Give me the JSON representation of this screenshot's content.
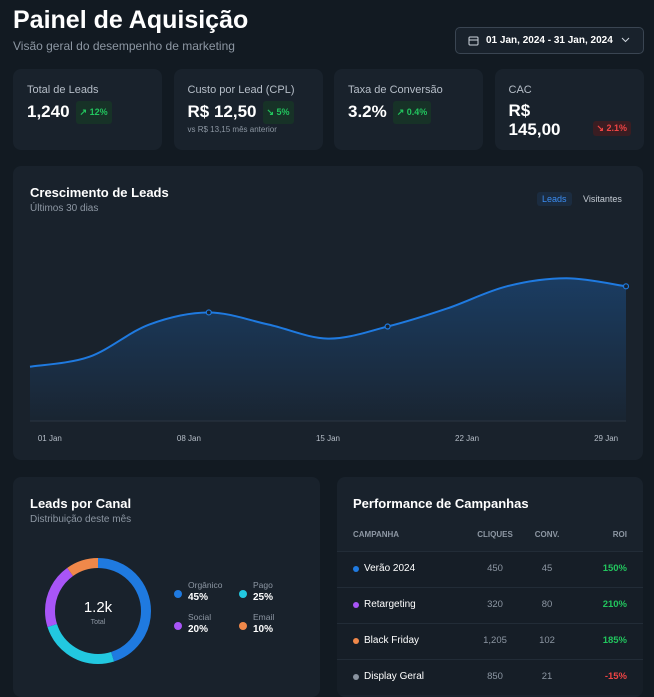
{
  "header": {
    "title": "Painel de Aquisição",
    "subtitle": "Visão geral do desempenho de marketing",
    "date_range": "01 Jan, 2024 - 31 Jan, 2024"
  },
  "kpis": [
    {
      "label": "Total de Leads",
      "value": "1,240",
      "change": "12%",
      "trend": "up"
    },
    {
      "label": "Custo por Lead (CPL)",
      "value": "R$ 12,50",
      "change": "5%",
      "trend": "down-good",
      "note": "vs R$ 13,15 mês anterior"
    },
    {
      "label": "Taxa de Conversão",
      "value": "3.2%",
      "change": "0.4%",
      "trend": "up"
    },
    {
      "label": "CAC",
      "value": "R$ 145,00",
      "change": "2.1%",
      "trend": "down-bad"
    }
  ],
  "leads_chart": {
    "type": "line",
    "title": "Crescimento de Leads",
    "subtitle": "Últimos 30 dias",
    "toggles": [
      "Leads",
      "Visitantes"
    ],
    "x": [
      0,
      3,
      6,
      9,
      12,
      15,
      18,
      21,
      24,
      27,
      30
    ],
    "values": [
      27,
      32,
      48,
      54,
      48,
      41,
      47,
      56,
      67,
      71,
      67
    ],
    "color": "#1f7ae0",
    "xlim": [
      0,
      30
    ],
    "ylim": [
      0,
      100
    ],
    "xticks": [
      {
        "value": 1,
        "label": "01 Jan"
      },
      {
        "value": 8,
        "label": "08 Jan"
      },
      {
        "value": 15,
        "label": "15 Jan"
      },
      {
        "value": 22,
        "label": "22 Jan"
      },
      {
        "value": 29,
        "label": "29 Jan"
      }
    ]
  },
  "channel_chart": {
    "type": "pie",
    "title": "Leads por Canal",
    "subtitle": "Distribuição deste mês",
    "center_value": "1.2k",
    "center_label": "Total",
    "categories": [
      "Orgânico",
      "Pago",
      "Social",
      "Email"
    ],
    "values": [
      45,
      25,
      20,
      10
    ],
    "value_labels": [
      "45%",
      "25%",
      "20%",
      "10%"
    ],
    "colors": [
      "#1f7ae0",
      "#22c8e0",
      "#a855f7",
      "#f0884a"
    ]
  },
  "campaigns": {
    "title": "Performance de Campanhas",
    "columns": [
      "CAMPANHA",
      "CLIQUES",
      "CONV.",
      "ROI"
    ],
    "rows": [
      [
        "Verão 2024",
        "450",
        "45",
        "150%"
      ],
      [
        "Retargeting",
        "320",
        "80",
        "210%"
      ],
      [
        "Black Friday",
        "1,205",
        "102",
        "185%"
      ],
      [
        "Display Geral",
        "850",
        "21",
        "-15%"
      ]
    ],
    "colors": [
      "#1f7ae0",
      "#a855f7",
      "#f0884a",
      "#8a94a0"
    ]
  }
}
